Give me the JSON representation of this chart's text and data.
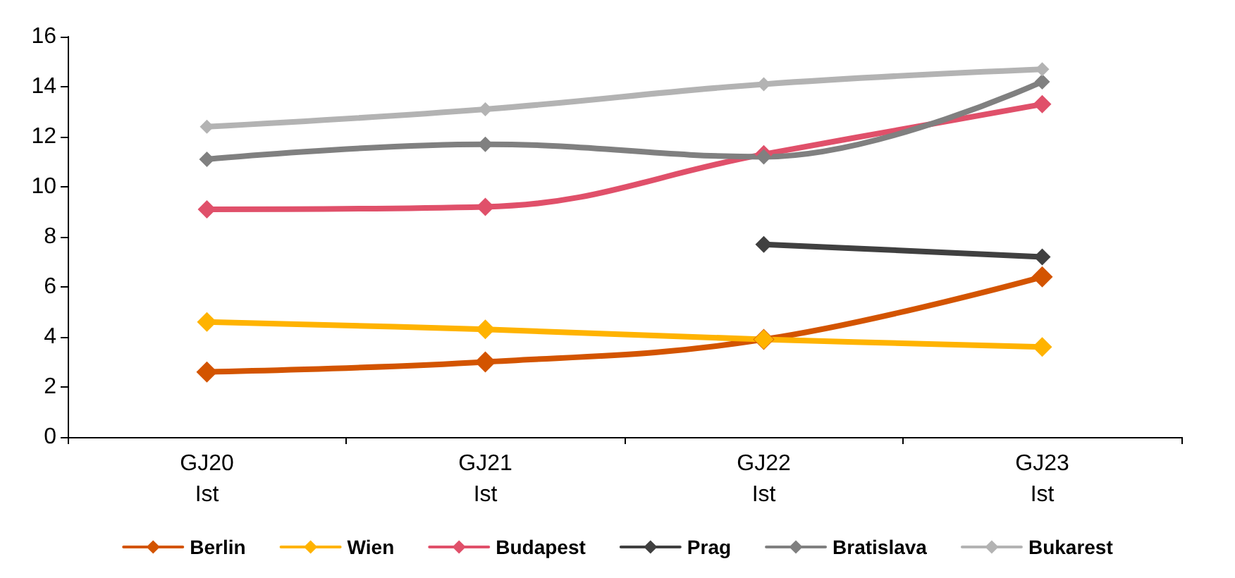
{
  "chart_data": {
    "type": "line",
    "categories": [
      "GJ20\nIst",
      "GJ21\nIst",
      "GJ22\nIst",
      "GJ23\nIst"
    ],
    "series": [
      {
        "name": "Berlin",
        "color": "#d35400",
        "values": [
          2.6,
          3.0,
          3.9,
          6.4
        ]
      },
      {
        "name": "Wien",
        "color": "#ffb300",
        "values": [
          4.6,
          4.3,
          3.9,
          3.6
        ]
      },
      {
        "name": "Budapest",
        "color": "#e0506a",
        "values": [
          9.1,
          9.2,
          11.3,
          13.3
        ]
      },
      {
        "name": "Prag",
        "color": "#404040",
        "values": [
          null,
          null,
          7.7,
          7.2
        ]
      },
      {
        "name": "Bratislava",
        "color": "#808080",
        "values": [
          11.1,
          11.7,
          11.2,
          14.2
        ]
      },
      {
        "name": "Bukarest",
        "color": "#b3b3b3",
        "values": [
          12.4,
          13.1,
          14.1,
          14.7
        ]
      }
    ],
    "ylim": [
      0,
      16
    ],
    "yticks": [
      0,
      2,
      4,
      6,
      8,
      10,
      12,
      14,
      16
    ],
    "legend": "bottom",
    "marker": "diamond",
    "line_style": "solid"
  }
}
